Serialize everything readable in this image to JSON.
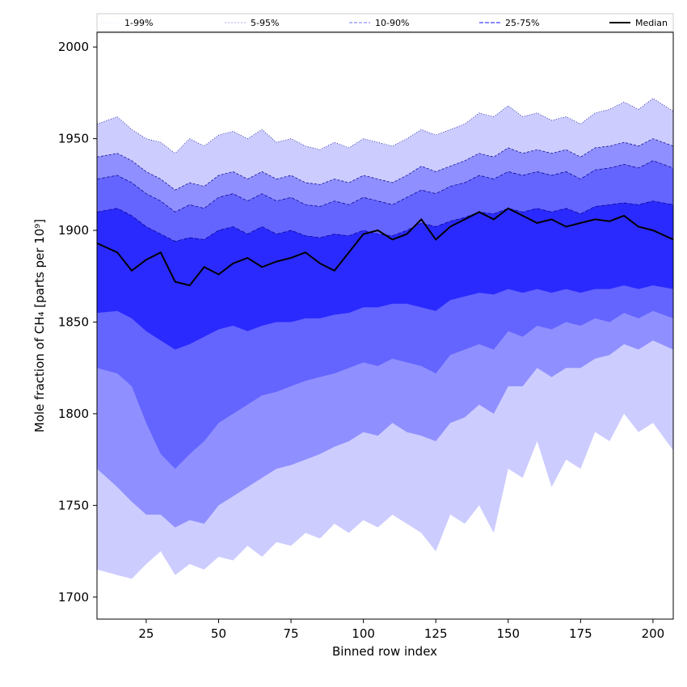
{
  "chart_data": {
    "type": "area",
    "xlabel": "Binned row index",
    "ylabel": "Mole fraction of CH₄ [parts per 10⁹]",
    "xlim": [
      8,
      207
    ],
    "ylim": [
      1688,
      2008
    ],
    "xticks": [
      25,
      50,
      75,
      100,
      125,
      150,
      175,
      200
    ],
    "yticks": [
      1700,
      1750,
      1800,
      1850,
      1900,
      1950,
      2000
    ],
    "grid": false,
    "legend_position": "top",
    "legend": [
      "1-99%",
      "5-95%",
      "10-90%",
      "25-75%",
      "Median"
    ],
    "x": [
      8,
      15,
      20,
      25,
      30,
      35,
      40,
      45,
      50,
      55,
      60,
      65,
      70,
      75,
      80,
      85,
      90,
      95,
      100,
      105,
      110,
      115,
      120,
      125,
      130,
      135,
      140,
      145,
      150,
      155,
      160,
      165,
      170,
      175,
      180,
      185,
      190,
      195,
      200,
      207
    ],
    "bands": [
      {
        "name": "1-99%",
        "color": "#ccccff",
        "lower": [
          1715,
          1712,
          1710,
          1718,
          1725,
          1712,
          1718,
          1715,
          1722,
          1720,
          1728,
          1722,
          1730,
          1728,
          1735,
          1732,
          1740,
          1735,
          1742,
          1738,
          1745,
          1740,
          1735,
          1725,
          1745,
          1740,
          1750,
          1735,
          1770,
          1765,
          1785,
          1760,
          1775,
          1770,
          1790,
          1785,
          1800,
          1790,
          1795,
          1780
        ],
        "upper": [
          1958,
          1962,
          1955,
          1950,
          1948,
          1942,
          1950,
          1946,
          1952,
          1954,
          1950,
          1955,
          1948,
          1950,
          1946,
          1944,
          1948,
          1945,
          1950,
          1948,
          1946,
          1950,
          1955,
          1952,
          1955,
          1958,
          1964,
          1962,
          1968,
          1962,
          1964,
          1960,
          1962,
          1958,
          1964,
          1966,
          1970,
          1966,
          1972,
          1965
        ]
      },
      {
        "name": "5-95%",
        "color": "#8f8fff",
        "lower": [
          1770,
          1760,
          1752,
          1745,
          1745,
          1738,
          1742,
          1740,
          1750,
          1755,
          1760,
          1765,
          1770,
          1772,
          1775,
          1778,
          1782,
          1785,
          1790,
          1788,
          1795,
          1790,
          1788,
          1785,
          1795,
          1798,
          1805,
          1800,
          1815,
          1815,
          1825,
          1820,
          1825,
          1825,
          1830,
          1832,
          1838,
          1835,
          1840,
          1835
        ],
        "upper": [
          1940,
          1942,
          1938,
          1932,
          1928,
          1922,
          1926,
          1924,
          1930,
          1932,
          1928,
          1932,
          1928,
          1930,
          1926,
          1925,
          1928,
          1926,
          1930,
          1928,
          1926,
          1930,
          1935,
          1932,
          1935,
          1938,
          1942,
          1940,
          1945,
          1942,
          1944,
          1942,
          1944,
          1940,
          1945,
          1946,
          1948,
          1946,
          1950,
          1946
        ]
      },
      {
        "name": "10-90%",
        "color": "#6464ff",
        "lower": [
          1825,
          1822,
          1815,
          1795,
          1778,
          1770,
          1778,
          1785,
          1795,
          1800,
          1805,
          1810,
          1812,
          1815,
          1818,
          1820,
          1822,
          1825,
          1828,
          1826,
          1830,
          1828,
          1826,
          1822,
          1832,
          1835,
          1838,
          1835,
          1845,
          1842,
          1848,
          1846,
          1850,
          1848,
          1852,
          1850,
          1855,
          1852,
          1856,
          1852
        ],
        "upper": [
          1928,
          1930,
          1926,
          1920,
          1916,
          1910,
          1914,
          1912,
          1918,
          1920,
          1916,
          1920,
          1916,
          1918,
          1914,
          1913,
          1916,
          1914,
          1918,
          1916,
          1914,
          1918,
          1922,
          1920,
          1924,
          1926,
          1930,
          1928,
          1932,
          1930,
          1932,
          1930,
          1932,
          1928,
          1933,
          1934,
          1936,
          1934,
          1938,
          1934
        ]
      },
      {
        "name": "25-75%",
        "color": "#2a2aff",
        "lower": [
          1855,
          1856,
          1852,
          1845,
          1840,
          1835,
          1838,
          1842,
          1846,
          1848,
          1845,
          1848,
          1850,
          1850,
          1852,
          1852,
          1854,
          1855,
          1858,
          1858,
          1860,
          1860,
          1858,
          1856,
          1862,
          1864,
          1866,
          1865,
          1868,
          1866,
          1868,
          1866,
          1868,
          1866,
          1868,
          1868,
          1870,
          1868,
          1870,
          1868
        ],
        "upper": [
          1910,
          1912,
          1908,
          1902,
          1898,
          1894,
          1896,
          1895,
          1900,
          1902,
          1898,
          1902,
          1898,
          1900,
          1897,
          1896,
          1898,
          1897,
          1900,
          1898,
          1897,
          1900,
          1904,
          1902,
          1905,
          1907,
          1910,
          1909,
          1912,
          1910,
          1912,
          1910,
          1912,
          1909,
          1913,
          1914,
          1915,
          1914,
          1916,
          1914
        ]
      }
    ],
    "series": [
      {
        "name": "Median",
        "color": "#000000",
        "values": [
          1893,
          1888,
          1878,
          1884,
          1888,
          1872,
          1870,
          1880,
          1876,
          1882,
          1885,
          1880,
          1883,
          1885,
          1888,
          1882,
          1878,
          1888,
          1898,
          1900,
          1895,
          1898,
          1906,
          1895,
          1902,
          1906,
          1910,
          1906,
          1912,
          1908,
          1904,
          1906,
          1902,
          1904,
          1906,
          1905,
          1908,
          1902,
          1900,
          1895
        ]
      }
    ]
  }
}
